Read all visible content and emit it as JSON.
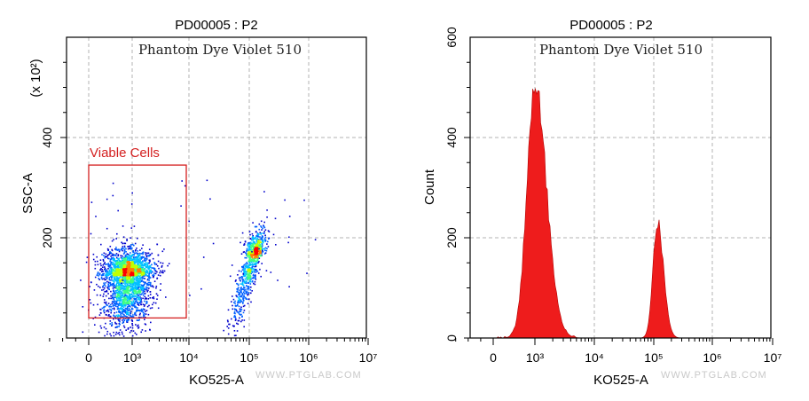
{
  "chart_data": [
    {
      "type": "scatter",
      "title": "PD00005 : P2",
      "annotation": "Phantom Dye Violet 510",
      "xlabel": "KO525-A",
      "ylabel": "SSC-A",
      "y_multiplier": "(x 10²)",
      "x_scale": "biexponential",
      "x_ticks": [
        "0",
        "10³",
        "10⁴",
        "10⁵",
        "10⁶",
        "10⁷"
      ],
      "y_ticks": [
        "200",
        "400"
      ],
      "ylim": [
        0,
        600
      ],
      "grid": true,
      "colormap": [
        "#0000cc",
        "#0060ff",
        "#00c0ff",
        "#40ff80",
        "#c0ff00",
        "#ff8000",
        "#ff0000"
      ],
      "gate": {
        "name": "Viable Cells",
        "x_range": [
          "0",
          "10⁴"
        ],
        "y_range": [
          40,
          345
        ],
        "color": "#d42020"
      },
      "populations": [
        {
          "label": "Viable Cells",
          "x_center": "10³",
          "y_center": 125,
          "y_range": [
            60,
            320
          ]
        },
        {
          "label": "",
          "x_center": "10⁵",
          "y_center": 165,
          "y_range": [
            95,
            300
          ]
        }
      ]
    },
    {
      "type": "area",
      "title": "PD00005 : P2",
      "annotation": "Phantom Dye Violet 510",
      "xlabel": "KO525-A",
      "ylabel": "Count",
      "x_scale": "biexponential",
      "x_ticks": [
        "0",
        "10³",
        "10⁴",
        "10⁵",
        "10⁶",
        "10⁷"
      ],
      "y_ticks": [
        "0",
        "200",
        "400",
        "600"
      ],
      "ylim": [
        0,
        600
      ],
      "grid": true,
      "fill_color": "#ee1c1c",
      "peaks": [
        {
          "x": "10³",
          "height": 505
        },
        {
          "x": "10⁵",
          "height": 235
        }
      ]
    }
  ],
  "watermark": "WWW.PTGLAB.COM"
}
